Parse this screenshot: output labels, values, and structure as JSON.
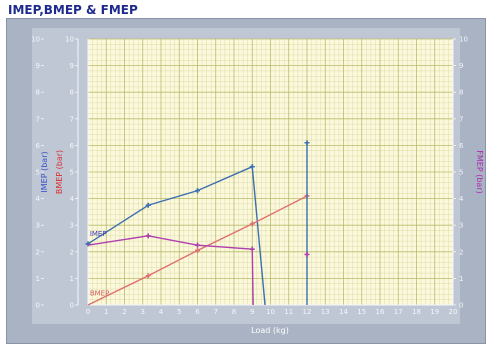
{
  "window": {
    "title": "IMEP,BMEP & FMEP"
  },
  "chart_data": {
    "type": "line",
    "title": "",
    "xlabel": "Load (kg)",
    "xlim": [
      0,
      20
    ],
    "ylim": [
      0,
      10
    ],
    "grid": true,
    "y_axes": [
      {
        "label": "IMEP (bar)",
        "color": "#3a50c8",
        "side": "left"
      },
      {
        "label": "BMEP (bar)",
        "color": "#d83030",
        "side": "left"
      },
      {
        "label": "FMEP (bar)",
        "color": "#b02ab0",
        "side": "right"
      }
    ],
    "x_ticks": [
      0,
      1,
      2,
      3,
      4,
      5,
      6,
      7,
      8,
      9,
      10,
      11,
      12,
      13,
      14,
      15,
      16,
      17,
      18,
      19,
      20
    ],
    "y_ticks": [
      0,
      1,
      2,
      3,
      4,
      5,
      6,
      7,
      8,
      9,
      10
    ],
    "series": [
      {
        "name": "IMEP",
        "color": "#3c6fb0",
        "x": [
          0,
          3.3,
          6,
          9,
          9.7
        ],
        "y": [
          2.3,
          3.75,
          4.3,
          5.2,
          0
        ],
        "markers": [
          0,
          1,
          2,
          3
        ]
      },
      {
        "name": "BMEP",
        "color": "#e07070",
        "x": [
          0,
          3.3,
          6,
          9,
          12
        ],
        "y": [
          0,
          1.1,
          2.05,
          3.05,
          4.1
        ],
        "markers": [
          1,
          2,
          3,
          4
        ]
      },
      {
        "name": "FMEP",
        "color": "#b040b0",
        "x": [
          0,
          3.3,
          6,
          9,
          9.05
        ],
        "y": [
          2.25,
          2.6,
          2.25,
          2.1,
          0
        ],
        "markers": [
          1,
          2,
          3
        ]
      },
      {
        "name": "",
        "color": "#3c6fb0",
        "x": [
          12,
          12
        ],
        "y": [
          0,
          6.1
        ],
        "markers": [
          1
        ]
      },
      {
        "name": "",
        "color": "#b040b0",
        "x": [
          12
        ],
        "y": [
          1.9
        ],
        "markers": [
          0
        ]
      }
    ],
    "annotations": [
      {
        "text": "IMEP",
        "x": 0.1,
        "y": 2.6,
        "color": "#3a3ab0"
      },
      {
        "text": "BMEP",
        "x": 0.1,
        "y": 0.35,
        "color": "#d06060"
      }
    ]
  }
}
